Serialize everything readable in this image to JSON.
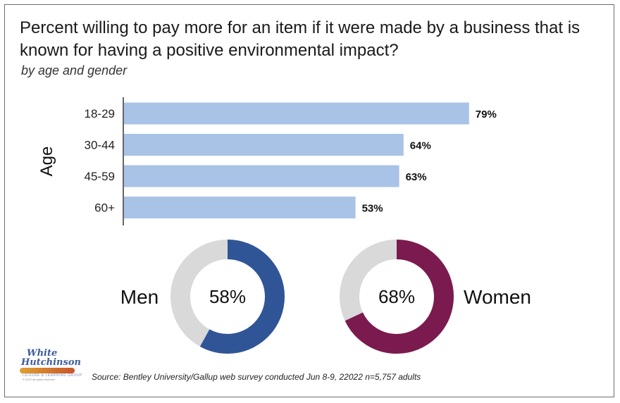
{
  "title": "Percent willing to pay more for an item if it were made by a business that is known for having a positive environmental impact?",
  "subtitle": "by age and gender",
  "source": "Source: Bentley University/Gallup web survey conducted Jun 8-9, 22022 n=5,757 adults",
  "logo": {
    "line1": "White",
    "line2": "Hutchinson",
    "tagline": "LEISURE & LEARNING GROUP",
    "copyright": "© 2022 all rights reserved"
  },
  "colors": {
    "bar": "#a9c3e7",
    "men": "#2f5597",
    "women": "#7b1a4f",
    "donut_rest": "#d9d9d9"
  },
  "chart_data": [
    {
      "type": "bar",
      "orientation": "horizontal",
      "ylabel": "Age",
      "categories": [
        "18-29",
        "30-44",
        "45-59",
        "60+"
      ],
      "values": [
        79,
        64,
        63,
        53
      ],
      "data_labels": [
        "79%",
        "64%",
        "63%",
        "53%"
      ],
      "xlim": [
        0,
        100
      ],
      "grid": false
    },
    {
      "type": "pie",
      "style": "donut",
      "series": [
        {
          "name": "Men",
          "value": 58,
          "label": "58%"
        },
        {
          "name": "Women",
          "value": 68,
          "label": "68%"
        }
      ]
    }
  ]
}
